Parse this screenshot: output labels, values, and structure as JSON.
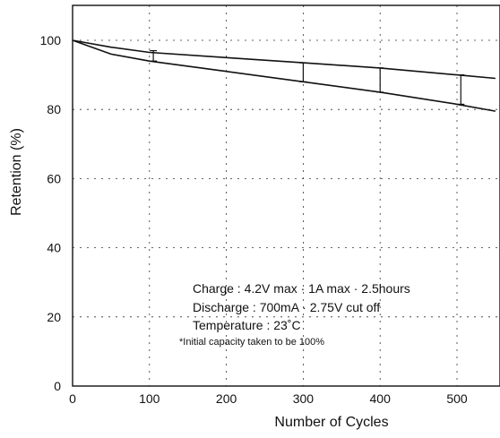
{
  "chart_data": {
    "type": "line",
    "xlabel": "Number of Cycles",
    "ylabel": "Retention (%)",
    "xlim": [
      0,
      550
    ],
    "ylim": [
      0,
      110
    ],
    "x_ticks": [
      0,
      100,
      200,
      300,
      400,
      500
    ],
    "y_ticks": [
      0,
      20,
      40,
      60,
      80,
      100
    ],
    "grid": true,
    "series": [
      {
        "x": [
          0,
          50,
          100,
          200,
          300,
          400,
          500,
          550
        ],
        "values": [
          100,
          98,
          96.5,
          95,
          93.5,
          92,
          90,
          89
        ]
      },
      {
        "x": [
          0,
          50,
          100,
          200,
          300,
          400,
          500,
          550
        ],
        "values": [
          100,
          96,
          94,
          91,
          88,
          85,
          81.5,
          79.5
        ]
      }
    ],
    "range_bars": [
      {
        "x": 105,
        "low": 94,
        "high": 97
      },
      {
        "x": 300,
        "low": 88,
        "high": 93.5
      },
      {
        "x": 400,
        "low": 85,
        "high": 92
      },
      {
        "x": 505,
        "low": 81.5,
        "high": 90
      }
    ],
    "annotations": {
      "charge": "Charge : 4.2V max · 1A max · 2.5hours",
      "discharge": "Discharge : 700mA · 2.75V cut off",
      "temperature": "Temperature : 23˚C",
      "footnote": "*Initial capacity taken to be 100%"
    }
  }
}
